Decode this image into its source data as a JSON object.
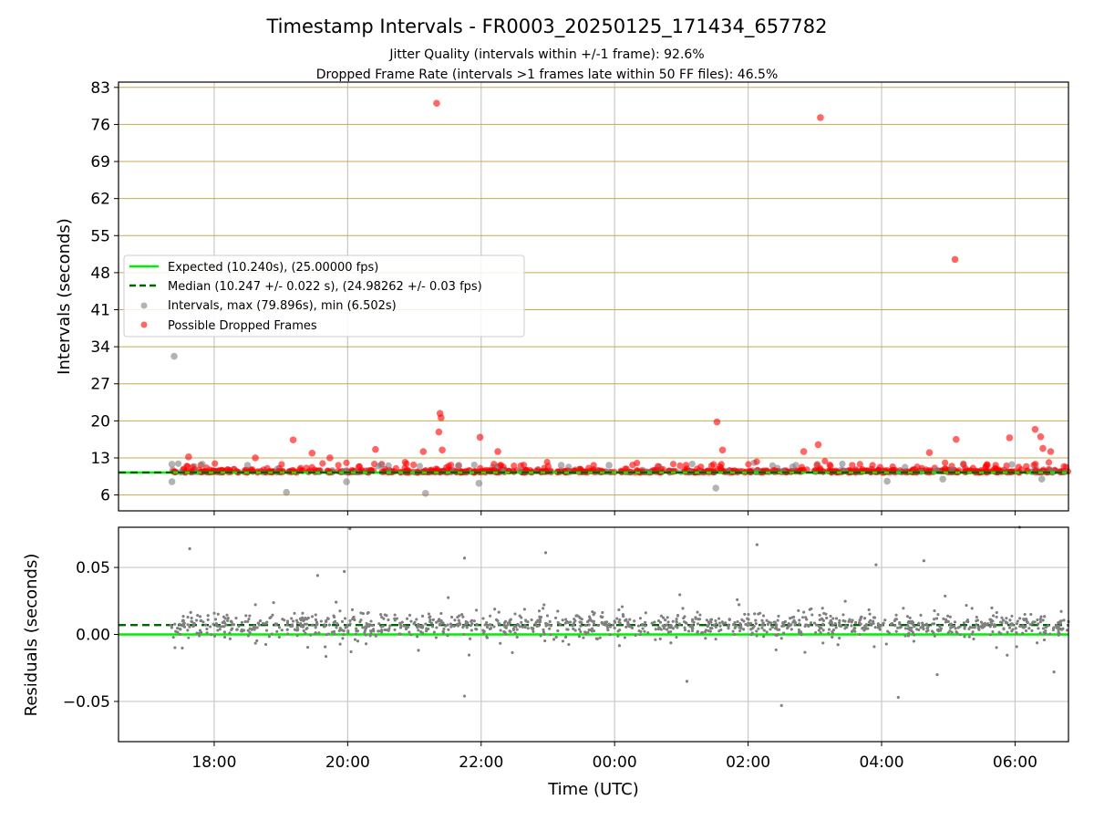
{
  "title": "Timestamp Intervals - FR0003_20250125_171434_657782",
  "subtitle_lines": [
    "Jitter Quality (intervals within +/-1 frame): 92.6%",
    "Dropped Frame Rate (intervals >1 frames late within 50 FF files): 46.5%"
  ],
  "colors": {
    "expected": "#00ee00",
    "median": "#006400",
    "intervals": "#808080",
    "dropped": "#ff0000",
    "hgrid_top": "#c8a850",
    "grid": "#c8c8c8"
  },
  "chart_data": [
    {
      "type": "scatter",
      "panel": "intervals",
      "xlabel": "",
      "ylabel": "Intervals (seconds)",
      "xlim": [
        "2025-01-25 16:34",
        "2025-01-26 06:48"
      ],
      "ylim": [
        3,
        84
      ],
      "yticks": [
        6,
        13,
        20,
        27,
        34,
        41,
        48,
        55,
        62,
        69,
        76,
        83
      ],
      "xticks": [
        "18:00",
        "20:00",
        "22:00",
        "00:00",
        "02:00",
        "04:00",
        "06:00"
      ],
      "grid": true,
      "legend_position": "center-left",
      "legend": [
        "Expected (10.240s), (25.00000 fps)",
        "Median (10.247 +/- 0.022 s), (24.98262 +/- 0.03 fps)",
        "Intervals, max (79.896s), min (6.502s)",
        "Possible Dropped Frames"
      ],
      "series": [
        {
          "name": "Expected (10.240s), (25.00000 fps)",
          "kind": "hline",
          "y": 10.24,
          "style": "solid"
        },
        {
          "name": "Median (10.247 +/- 0.022 s), (24.98262 +/- 0.03 fps)",
          "kind": "hline",
          "y": 10.247,
          "style": "dashed"
        },
        {
          "name": "Intervals, max (79.896s), min (6.502s)",
          "kind": "scatter",
          "points": [
            [
              "2025-01-25 17:24",
              32.2
            ],
            [
              "2025-01-25 17:22",
              11.8
            ],
            [
              "2025-01-25 17:22",
              8.5
            ],
            [
              "2025-01-25 19:05",
              6.5
            ],
            [
              "2025-01-25 21:10",
              6.3
            ],
            [
              "2025-01-25 19:59",
              8.5
            ],
            [
              "2025-01-25 21:58",
              8.2
            ],
            [
              "2025-01-26 01:31",
              7.3
            ],
            [
              "2025-01-25 18:30",
              11.6
            ],
            [
              "2025-01-25 20:30",
              11.6
            ],
            [
              "2025-01-25 21:40",
              11.6
            ],
            [
              "2025-01-25 23:12",
              11.6
            ],
            [
              "2025-01-25 23:55",
              11.6
            ],
            [
              "2025-01-26 00:40",
              11.3
            ],
            [
              "2025-01-26 02:40",
              11.3
            ],
            [
              "2025-01-26 04:05",
              8.6
            ],
            [
              "2025-01-26 04:55",
              9.0
            ],
            [
              "2025-01-26 06:24",
              9.0
            ]
          ]
        },
        {
          "name": "Possible Dropped Frames",
          "kind": "scatter",
          "points": [
            [
              "2025-01-25 21:20",
              80.0
            ],
            [
              "2025-01-26 03:05",
              77.3
            ],
            [
              "2025-01-26 05:06",
              50.5
            ],
            [
              "2025-01-25 21:23",
              21.4
            ],
            [
              "2025-01-25 21:24",
              20.6
            ],
            [
              "2025-01-25 21:22",
              17.9
            ],
            [
              "2025-01-26 01:32",
              19.8
            ],
            [
              "2025-01-25 21:59",
              16.9
            ],
            [
              "2025-01-25 19:11",
              16.4
            ],
            [
              "2025-01-26 05:07",
              16.5
            ],
            [
              "2025-01-26 05:55",
              16.8
            ],
            [
              "2025-01-26 06:18",
              18.4
            ],
            [
              "2025-01-26 06:23",
              17.0
            ],
            [
              "2025-01-26 03:03",
              15.5
            ],
            [
              "2025-01-26 01:37",
              14.5
            ],
            [
              "2025-01-25 20:25",
              14.6
            ],
            [
              "2025-01-25 21:08",
              14.2
            ],
            [
              "2025-01-26 02:50",
              14.2
            ],
            [
              "2025-01-26 04:43",
              14.0
            ],
            [
              "2025-01-26 06:25",
              14.8
            ],
            [
              "2025-01-25 21:25",
              14.5
            ],
            [
              "2025-01-25 22:15",
              14.2
            ],
            [
              "2025-01-26 06:32",
              14.2
            ],
            [
              "2025-01-25 17:37",
              13.2
            ],
            [
              "2025-01-25 18:37",
              13.0
            ],
            [
              "2025-01-25 19:28",
              13.9
            ],
            [
              "2025-01-25 19:44",
              13.0
            ],
            [
              "2025-01-26 00:39",
              11.4
            ],
            [
              "2025-01-26 05:35",
              11.6
            ]
          ],
          "note_dense_band": "dense cluster of points between 9.5 and 12.5 s"
        }
      ]
    },
    {
      "type": "scatter",
      "panel": "residuals",
      "xlabel": "Time (UTC)",
      "ylabel": "Residuals (seconds)",
      "xlim": [
        "2025-01-25 16:34",
        "2025-01-26 06:48"
      ],
      "ylim": [
        -0.08,
        0.08
      ],
      "yticks": [
        "0.05",
        "0.00",
        "−0.05"
      ],
      "ytick_values": [
        0.05,
        0.0,
        -0.05
      ],
      "xticks": [
        "18:00",
        "20:00",
        "22:00",
        "00:00",
        "02:00",
        "04:00",
        "06:00"
      ],
      "grid": true,
      "series": [
        {
          "name": "Expected",
          "kind": "hline",
          "y": 0.0,
          "style": "solid"
        },
        {
          "name": "Median",
          "kind": "hline",
          "y": 0.007,
          "style": "dashed"
        },
        {
          "name": "Residuals",
          "kind": "scatter",
          "points": [
            [
              "2025-01-25 17:38",
              0.064
            ],
            [
              "2025-01-25 19:57",
              0.047
            ],
            [
              "2025-01-25 20:02",
              0.079
            ],
            [
              "2025-01-25 19:33",
              0.044
            ],
            [
              "2025-01-25 21:45",
              0.057
            ],
            [
              "2025-01-25 22:58",
              0.061
            ],
            [
              "2025-01-26 02:08",
              0.067
            ],
            [
              "2025-01-26 03:55",
              0.052
            ],
            [
              "2025-01-26 04:38",
              0.055
            ],
            [
              "2025-01-26 06:04",
              0.08
            ],
            [
              "2025-01-25 21:45",
              -0.046
            ],
            [
              "2025-01-26 02:30",
              -0.053
            ],
            [
              "2025-01-26 04:15",
              -0.047
            ],
            [
              "2025-01-26 01:05",
              -0.035
            ],
            [
              "2025-01-26 06:35",
              -0.028
            ],
            [
              "2025-01-26 04:50",
              -0.03
            ]
          ],
          "note_dense_band": "dense cluster of points between -0.02 and 0.03 s"
        }
      ]
    }
  ]
}
